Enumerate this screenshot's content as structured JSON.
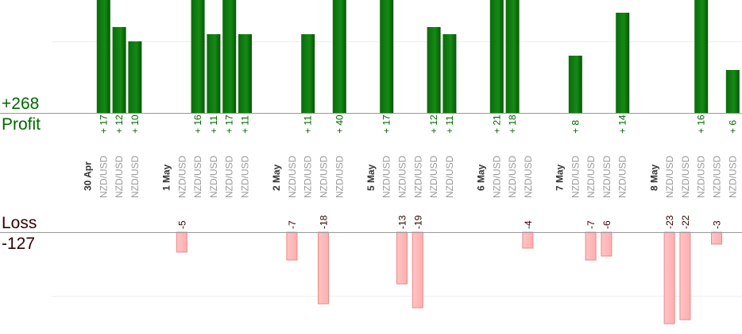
{
  "summary": {
    "profit_total": "+268",
    "profit_label": "Profit",
    "loss_label": "Loss",
    "loss_total": "-127"
  },
  "colors": {
    "profit_bar": "#0b6b0b",
    "profit_bar_highlight": "#1f8f1f",
    "profit_text": "#006600",
    "loss_bar": "#ffb8b8",
    "loss_bar_border": "#e88a8a",
    "loss_text": "#330000",
    "category_text": "#999999",
    "date_text": "#333333",
    "axis": "#999999",
    "grid": "#eeeeee"
  },
  "chart_data": {
    "type": "bar",
    "xlabel": "",
    "ylabel": "",
    "grid": true,
    "profit_ylim": [
      0,
      23
    ],
    "loss_ylim": [
      0,
      23
    ],
    "slots": [
      {
        "type": "date",
        "label": "30 Apr"
      },
      {
        "type": "trade",
        "label": "NZD/USD",
        "value": 17
      },
      {
        "type": "trade",
        "label": "NZD/USD",
        "value": 12
      },
      {
        "type": "trade",
        "label": "NZD/USD",
        "value": 10
      },
      {
        "type": "gap"
      },
      {
        "type": "date",
        "label": "1 May"
      },
      {
        "type": "trade",
        "label": "NZD/USD",
        "value": -5
      },
      {
        "type": "trade",
        "label": "NZD/USD",
        "value": 16
      },
      {
        "type": "trade",
        "label": "NZD/USD",
        "value": 11
      },
      {
        "type": "trade",
        "label": "NZD/USD",
        "value": 17
      },
      {
        "type": "trade",
        "label": "NZD/USD",
        "value": 11
      },
      {
        "type": "gap"
      },
      {
        "type": "date",
        "label": "2 May"
      },
      {
        "type": "trade",
        "label": "NZD/USD",
        "value": -7
      },
      {
        "type": "trade",
        "label": "NZD/USD",
        "value": 11
      },
      {
        "type": "trade",
        "label": "NZD/USD",
        "value": -18
      },
      {
        "type": "trade",
        "label": "NZD/USD",
        "value": 40
      },
      {
        "type": "gap"
      },
      {
        "type": "date",
        "label": "5 May"
      },
      {
        "type": "trade",
        "label": "NZD/USD",
        "value": 17
      },
      {
        "type": "trade",
        "label": "NZD/USD",
        "value": -13
      },
      {
        "type": "trade",
        "label": "NZD/USD",
        "value": -19
      },
      {
        "type": "trade",
        "label": "NZD/USD",
        "value": 12
      },
      {
        "type": "trade",
        "label": "NZD/USD",
        "value": 11
      },
      {
        "type": "gap"
      },
      {
        "type": "date",
        "label": "6 May"
      },
      {
        "type": "trade",
        "label": "NZD/USD",
        "value": 21
      },
      {
        "type": "trade",
        "label": "NZD/USD",
        "value": 18
      },
      {
        "type": "trade",
        "label": "NZD/USD",
        "value": -4
      },
      {
        "type": "gap"
      },
      {
        "type": "date",
        "label": "7 May"
      },
      {
        "type": "trade",
        "label": "NZD/USD",
        "value": 8
      },
      {
        "type": "trade",
        "label": "NZD/USD",
        "value": -7
      },
      {
        "type": "trade",
        "label": "NZD/USD",
        "value": -6
      },
      {
        "type": "trade",
        "label": "NZD/USD",
        "value": 14
      },
      {
        "type": "gap"
      },
      {
        "type": "date",
        "label": "8 May"
      },
      {
        "type": "trade",
        "label": "NZD/USD",
        "value": -23
      },
      {
        "type": "trade",
        "label": "NZD/USD",
        "value": -22
      },
      {
        "type": "trade",
        "label": "NZD/USD",
        "value": 16
      },
      {
        "type": "trade",
        "label": "NZD/USD",
        "value": -3
      },
      {
        "type": "trade",
        "label": "NZD/USD",
        "value": 6
      }
    ]
  }
}
